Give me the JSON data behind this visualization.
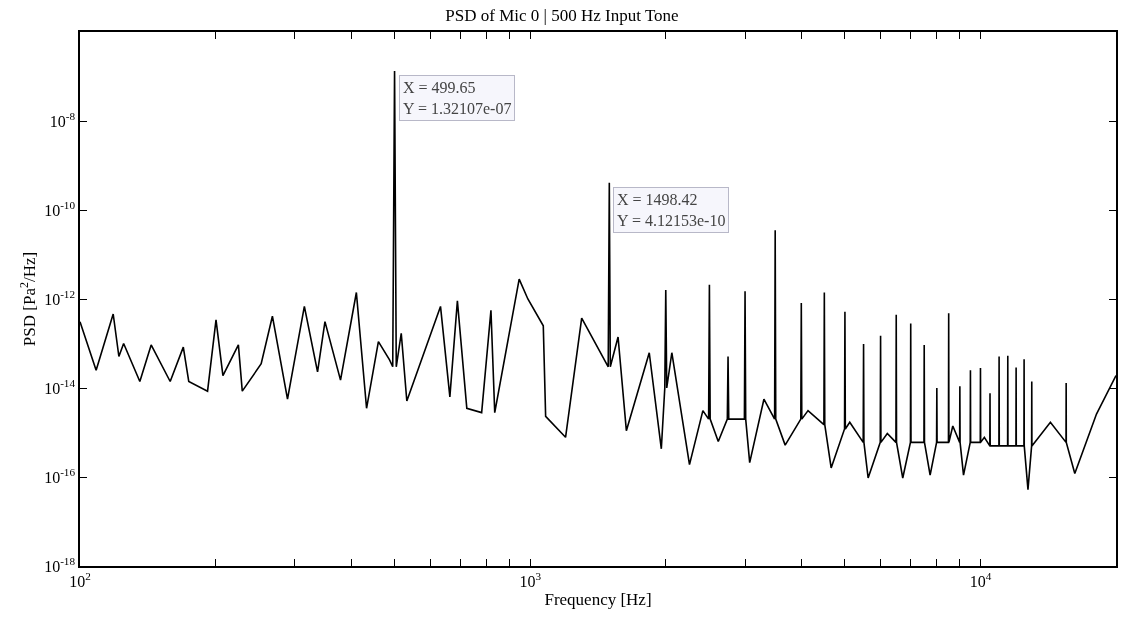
{
  "chart_data": {
    "type": "line",
    "title": "PSD of Mic 0 | 500 Hz Input Tone",
    "xlabel": "Frequency [Hz]",
    "ylabel": "PSD [Pa$^{2}$/Hz]",
    "log": "xy",
    "marker": "none",
    "line_style": "solid",
    "xlim": [
      100,
      20000
    ],
    "ylim": [
      1e-18,
      1e-06
    ],
    "xticks": [
      {
        "value": 100,
        "label": "10$^{2}$"
      },
      {
        "value": 200,
        "label": null
      },
      {
        "value": 300,
        "label": null
      },
      {
        "value": 400,
        "label": null
      },
      {
        "value": 500,
        "label": null
      },
      {
        "value": 600,
        "label": null
      },
      {
        "value": 700,
        "label": null
      },
      {
        "value": 800,
        "label": null
      },
      {
        "value": 900,
        "label": null
      },
      {
        "value": 1000,
        "label": "10$^{3}$"
      },
      {
        "value": 2000,
        "label": null
      },
      {
        "value": 3000,
        "label": null
      },
      {
        "value": 4000,
        "label": null
      },
      {
        "value": 5000,
        "label": null
      },
      {
        "value": 6000,
        "label": null
      },
      {
        "value": 7000,
        "label": null
      },
      {
        "value": 8000,
        "label": null
      },
      {
        "value": 9000,
        "label": null
      },
      {
        "value": 10000,
        "label": "10$^{4}$"
      }
    ],
    "yticks": [
      {
        "value": 1e-18,
        "label": "10$^{-18}$"
      },
      {
        "value": 1e-16,
        "label": "10$^{-16}$"
      },
      {
        "value": 1e-14,
        "label": "10$^{-14}$"
      },
      {
        "value": 1e-12,
        "label": "10$^{-12}$"
      },
      {
        "value": 1e-10,
        "label": "10$^{-10}$"
      },
      {
        "value": 1e-08,
        "label": "10$^{-8}$"
      }
    ],
    "annotations": [
      {
        "text": "X = 499.65\nY = 1.32107e-07",
        "x": 499.65,
        "y": 1.32107e-07
      },
      {
        "text": "X = 1498.42\nY = 4.12153e-10",
        "x": 1498.42,
        "y": 4.12153e-10
      }
    ],
    "series": [
      {
        "color": "#000000",
        "x": [
          100,
          108.6,
          118.5,
          122,
          125,
          135.8,
          143.9,
          158.6,
          169.6,
          174.4,
          192,
          200.5,
          207.7,
          224.8,
          229.3,
          252.6,
          267.5,
          289,
          315,
          337,
          350,
          379,
          411,
          433,
          460,
          487,
          495,
          499.65,
          504,
          517,
          532,
          632,
          663,
          689,
          723,
          780,
          818,
          834,
          945,
          988,
          1069,
          1082,
          1198,
          1301,
          1490,
          1498.42,
          1506,
          1567,
          1635,
          1838,
          1955,
          1990,
          2000,
          2010,
          2063,
          2258,
          2418,
          2490,
          2500,
          2510,
          2616,
          2740,
          2750,
          2760,
          2990,
          3000,
          3010,
          3072,
          3304,
          3490,
          3500,
          3510,
          3683,
          3990,
          4000,
          4010,
          4140,
          4490,
          4500,
          4510,
          4660,
          4990,
          5000,
          5010,
          5125,
          5490,
          5500,
          5510,
          5630,
          5990,
          6000,
          6010,
          6210,
          6490,
          6500,
          6510,
          6720,
          6990,
          7000,
          7010,
          7490,
          7500,
          7510,
          7730,
          7990,
          8000,
          8010,
          8490,
          8500,
          8510,
          8680,
          8990,
          9000,
          9010,
          9170,
          9490,
          9500,
          9510,
          9990,
          10000,
          10010,
          10200,
          10490,
          10500,
          10510,
          10990,
          11000,
          11010,
          11490,
          11500,
          11510,
          11990,
          12000,
          12010,
          12490,
          12500,
          12510,
          12750,
          12990,
          13000,
          13010,
          14300,
          15490,
          15500,
          15510,
          16200,
          18100,
          20000
        ],
        "values": [
          3.1e-13,
          2.5e-14,
          4.6e-13,
          5.1e-14,
          1e-13,
          1.4e-14,
          9.3e-14,
          1.4e-14,
          8.3e-14,
          1.4e-14,
          8.5e-15,
          3.4e-13,
          1.9e-14,
          9.3e-14,
          8.5e-15,
          3.5e-14,
          4.1e-13,
          5.6e-15,
          6.8e-13,
          2.3e-14,
          3.1e-13,
          1.5e-14,
          1.4e-12,
          3.5e-15,
          1.1e-13,
          4.3e-14,
          3e-14,
          1.32107e-07,
          3e-14,
          1.7e-13,
          5.1e-15,
          6.8e-13,
          6.3e-15,
          9.1e-13,
          3.5e-15,
          2.8e-15,
          5.6e-13,
          2.8e-15,
          2.8e-12,
          1e-12,
          2.5e-13,
          2.3e-15,
          7.8e-16,
          3.7e-13,
          3e-14,
          4.12153e-10,
          3e-14,
          1.4e-13,
          1.1e-15,
          6.2e-14,
          4.3e-16,
          1e-14,
          1.6e-12,
          1e-14,
          6.2e-14,
          1.9e-16,
          3.1e-15,
          2e-15,
          2.1e-12,
          2e-15,
          6.3e-16,
          2e-15,
          5.1e-14,
          2e-15,
          2e-15,
          1.5e-12,
          2e-15,
          2.1e-16,
          5.6e-15,
          2e-15,
          3.5e-11,
          2e-15,
          5.2e-16,
          2e-15,
          8.1e-13,
          2e-15,
          3.1e-15,
          1.5e-15,
          1.4e-12,
          1.5e-15,
          1.6e-16,
          1.2e-15,
          5.2e-13,
          1.2e-15,
          1.7e-15,
          6e-16,
          9.8e-14,
          6e-16,
          9.5e-17,
          6e-16,
          1.5e-13,
          6e-16,
          9.5e-16,
          6e-16,
          4.4e-13,
          6e-16,
          9.5e-17,
          6e-16,
          2.8e-13,
          6e-16,
          6e-16,
          9.3e-14,
          6e-16,
          1.1e-16,
          6e-16,
          1e-14,
          6e-16,
          6e-16,
          4.8e-13,
          6e-16,
          1.4e-15,
          6e-16,
          1.1e-14,
          6e-16,
          1.1e-16,
          6e-16,
          2.5e-14,
          6e-16,
          6e-16,
          2.8e-14,
          6e-16,
          7.8e-16,
          5e-16,
          7.6e-15,
          5e-16,
          5e-16,
          5.1e-14,
          5e-16,
          5e-16,
          5.3e-14,
          5e-16,
          5e-16,
          2.9e-14,
          5e-16,
          5e-16,
          4.4e-14,
          5e-16,
          5.2e-17,
          5e-16,
          1.4e-14,
          5e-16,
          1.7e-15,
          6e-16,
          1.3e-14,
          6e-16,
          1.2e-16,
          2.6e-15,
          1.9e-14
        ]
      }
    ]
  }
}
